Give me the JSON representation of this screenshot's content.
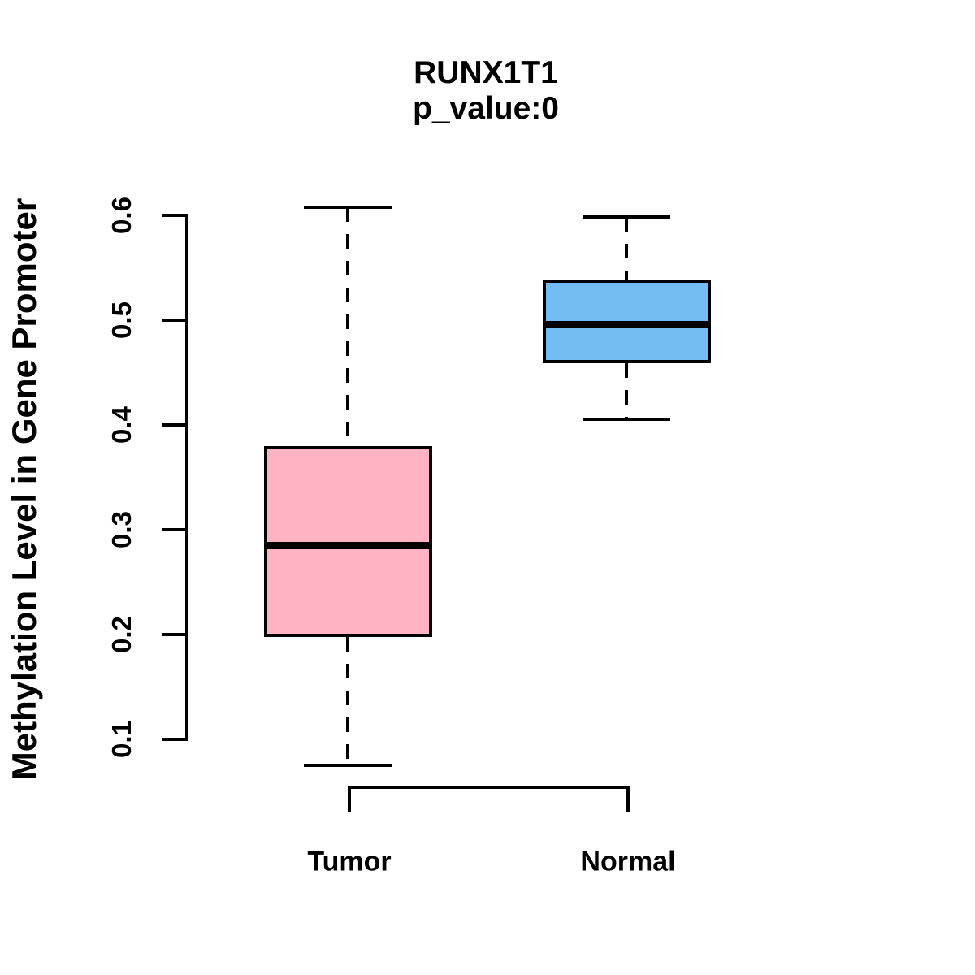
{
  "chart_data": {
    "type": "boxplot",
    "title": "RUNX1T1",
    "subtitle": "p_value:0",
    "ylabel": "Methylation Level in Gene Promoter",
    "xlabel": "",
    "ylim": [
      0.1,
      0.6
    ],
    "yticks": [
      0.1,
      0.2,
      0.3,
      0.4,
      0.5,
      0.6
    ],
    "grid": false,
    "legend": "none",
    "categories": [
      "Tumor",
      "Normal"
    ],
    "series": [
      {
        "name": "Tumor",
        "color": "#FFB3C3",
        "border_color": "#000000",
        "whisker_low": 0.074,
        "q1": 0.196,
        "median": 0.283,
        "q3": 0.378,
        "whisker_high": 0.606
      },
      {
        "name": "Normal",
        "color": "#74BDF2",
        "border_color": "#000000",
        "whisker_low": 0.404,
        "q1": 0.457,
        "median": 0.494,
        "q3": 0.537,
        "whisker_high": 0.597
      }
    ]
  }
}
